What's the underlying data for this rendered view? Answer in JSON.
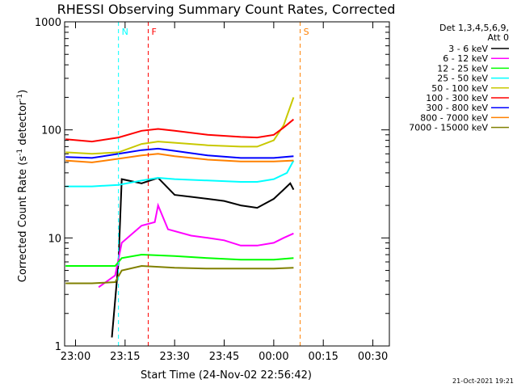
{
  "chart_data": {
    "type": "line",
    "title": "RHESSI Observing Summary Count Rates, Corrected",
    "xlabel": "Start Time (24-Nov-02 22:56:42)",
    "ylabel_main": "Corrected Count Rate (s",
    "ylabel_sup1": "-1",
    "ylabel_mid": " detector",
    "ylabel_sup2": "-1",
    "ylabel_end": ")",
    "ylim": [
      1,
      1000
    ],
    "log_y": true,
    "xlim": [
      "22:56:42",
      "00:35:00"
    ],
    "x_ticks": [
      "23:00",
      "23:15",
      "23:30",
      "23:45",
      "00:00",
      "00:15",
      "00:30"
    ],
    "y_ticks": [
      "1",
      "10",
      "100",
      "1000"
    ],
    "legend": {
      "header_line1": "Det 1,3,4,5,6,9,",
      "header_line2": "Att 0",
      "placement": "right"
    },
    "series": [
      {
        "name": "3 - 6 keV",
        "color": "#000000",
        "points": [
          [
            "23:11",
            1.2
          ],
          [
            "23:13",
            6
          ],
          [
            "23:14",
            35
          ],
          [
            "23:20",
            32
          ],
          [
            "23:25",
            36
          ],
          [
            "23:30",
            25
          ],
          [
            "23:35",
            24
          ],
          [
            "23:40",
            23
          ],
          [
            "23:45",
            22
          ],
          [
            "23:50",
            20
          ],
          [
            "23:55",
            19
          ],
          [
            "00:00",
            23
          ],
          [
            "00:03",
            28
          ],
          [
            "00:05",
            32
          ],
          [
            "00:06",
            28
          ]
        ]
      },
      {
        "name": "6 - 12 keV",
        "color": "#ff00ff",
        "points": [
          [
            "23:07",
            3.5
          ],
          [
            "23:12",
            4.5
          ],
          [
            "23:14",
            9
          ],
          [
            "23:20",
            13
          ],
          [
            "23:24",
            14
          ],
          [
            "23:25",
            20
          ],
          [
            "23:28",
            12
          ],
          [
            "23:35",
            10.5
          ],
          [
            "23:40",
            10
          ],
          [
            "23:45",
            9.5
          ],
          [
            "23:50",
            8.5
          ],
          [
            "23:55",
            8.5
          ],
          [
            "00:00",
            9
          ],
          [
            "00:03",
            10
          ],
          [
            "00:06",
            11
          ]
        ]
      },
      {
        "name": "12 - 25 keV",
        "color": "#00ff00",
        "points": [
          [
            "22:57",
            5.5
          ],
          [
            "23:05",
            5.5
          ],
          [
            "23:12",
            5.5
          ],
          [
            "23:14",
            6.5
          ],
          [
            "23:20",
            7
          ],
          [
            "23:30",
            6.8
          ],
          [
            "23:40",
            6.5
          ],
          [
            "23:50",
            6.3
          ],
          [
            "00:00",
            6.3
          ],
          [
            "00:06",
            6.5
          ]
        ]
      },
      {
        "name": "25 - 50 keV",
        "color": "#00ffff",
        "points": [
          [
            "22:57",
            30
          ],
          [
            "23:05",
            30
          ],
          [
            "23:13",
            31
          ],
          [
            "23:20",
            34
          ],
          [
            "23:25",
            36
          ],
          [
            "23:30",
            35
          ],
          [
            "23:40",
            34
          ],
          [
            "23:50",
            33
          ],
          [
            "23:55",
            33
          ],
          [
            "00:00",
            35
          ],
          [
            "00:04",
            40
          ],
          [
            "00:06",
            52
          ]
        ]
      },
      {
        "name": "50 - 100 keV",
        "color": "#c8c800",
        "points": [
          [
            "22:57",
            62
          ],
          [
            "23:05",
            60
          ],
          [
            "23:13",
            62
          ],
          [
            "23:20",
            74
          ],
          [
            "23:25",
            78
          ],
          [
            "23:30",
            76
          ],
          [
            "23:40",
            72
          ],
          [
            "23:50",
            70
          ],
          [
            "23:55",
            70
          ],
          [
            "00:00",
            80
          ],
          [
            "00:03",
            110
          ],
          [
            "00:06",
            200
          ]
        ]
      },
      {
        "name": "100 - 300 keV",
        "color": "#ff0000",
        "points": [
          [
            "22:57",
            82
          ],
          [
            "23:05",
            78
          ],
          [
            "23:13",
            85
          ],
          [
            "23:20",
            98
          ],
          [
            "23:25",
            102
          ],
          [
            "23:30",
            98
          ],
          [
            "23:40",
            90
          ],
          [
            "23:50",
            86
          ],
          [
            "23:55",
            85
          ],
          [
            "00:00",
            90
          ],
          [
            "00:03",
            105
          ],
          [
            "00:06",
            125
          ]
        ]
      },
      {
        "name": "300 - 800 keV",
        "color": "#0000ff",
        "points": [
          [
            "22:57",
            56
          ],
          [
            "23:05",
            55
          ],
          [
            "23:13",
            60
          ],
          [
            "23:20",
            65
          ],
          [
            "23:25",
            67
          ],
          [
            "23:30",
            64
          ],
          [
            "23:40",
            58
          ],
          [
            "23:50",
            55
          ],
          [
            "23:55",
            55
          ],
          [
            "00:00",
            55
          ],
          [
            "00:06",
            57
          ]
        ]
      },
      {
        "name": "800 - 7000 keV",
        "color": "#ff8000",
        "points": [
          [
            "22:57",
            52
          ],
          [
            "23:05",
            50
          ],
          [
            "23:13",
            54
          ],
          [
            "23:20",
            58
          ],
          [
            "23:25",
            60
          ],
          [
            "23:30",
            57
          ],
          [
            "23:40",
            53
          ],
          [
            "23:50",
            51
          ],
          [
            "23:55",
            51
          ],
          [
            "00:00",
            51
          ],
          [
            "00:06",
            52
          ]
        ]
      },
      {
        "name": "7000 - 15000 keV",
        "color": "#808000",
        "points": [
          [
            "22:57",
            3.8
          ],
          [
            "23:05",
            3.8
          ],
          [
            "23:12",
            3.9
          ],
          [
            "23:14",
            5
          ],
          [
            "23:20",
            5.5
          ],
          [
            "23:30",
            5.3
          ],
          [
            "23:40",
            5.2
          ],
          [
            "23:50",
            5.2
          ],
          [
            "00:00",
            5.2
          ],
          [
            "00:06",
            5.3
          ]
        ]
      }
    ],
    "annotations": [
      {
        "label": "N",
        "x": "23:13",
        "color": "#00ffff"
      },
      {
        "label": "F",
        "x": "23:22",
        "color": "#ff0000"
      },
      {
        "label": "S",
        "x": "00:08",
        "color": "#ff8000"
      }
    ],
    "timestamp": "21-Oct-2021 19:21"
  }
}
